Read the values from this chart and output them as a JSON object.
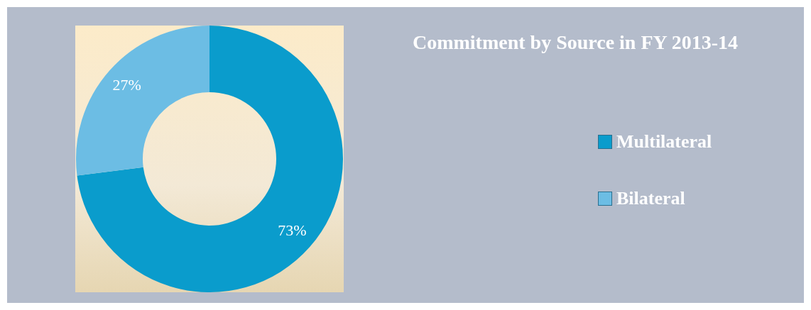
{
  "chart_data": {
    "type": "donut",
    "title": "Commitment by Source in FY 2013-14",
    "categories": [
      "Multilateral",
      "Bilateral"
    ],
    "values": [
      73,
      27
    ],
    "colors": [
      "#0a9ccc",
      "#6cbde4"
    ],
    "value_labels": [
      "73%",
      "27%"
    ],
    "legend": "right"
  }
}
